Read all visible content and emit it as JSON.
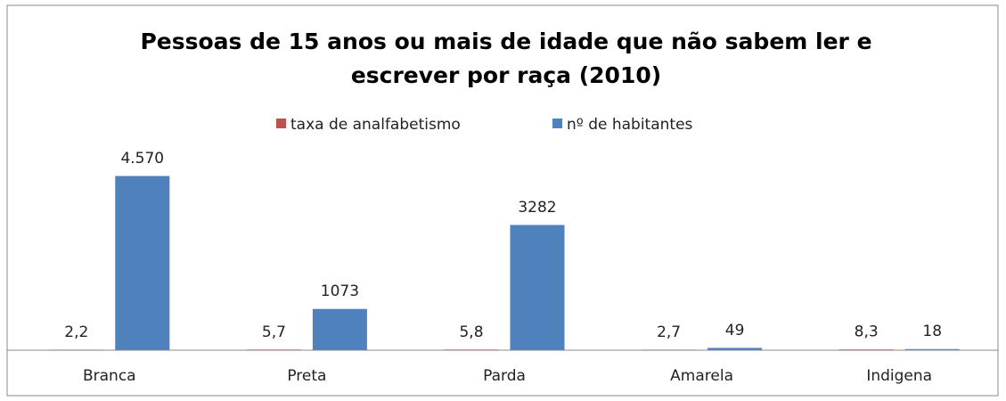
{
  "chart_data": {
    "type": "bar",
    "title": [
      "Pessoas de 15 anos ou mais de idade que não sabem ler e",
      "escrever por raça (2010)"
    ],
    "categories": [
      "Branca",
      "Preta",
      "Parda",
      "Amarela",
      "Indigena"
    ],
    "series": [
      {
        "name": "taxa de analfabetismo",
        "color": "#c0504d",
        "values": [
          2.2,
          5.7,
          5.8,
          2.7,
          8.3
        ],
        "value_labels": [
          "2,2",
          "5,7",
          "5,8",
          "2,7",
          "8,3"
        ]
      },
      {
        "name": "nº de habitantes",
        "color": "#4f81bd",
        "values": [
          4570,
          1073,
          3282,
          49,
          18
        ],
        "value_labels": [
          "4.570",
          "1073",
          "3282",
          "49",
          "18"
        ]
      }
    ],
    "legend": "top"
  }
}
